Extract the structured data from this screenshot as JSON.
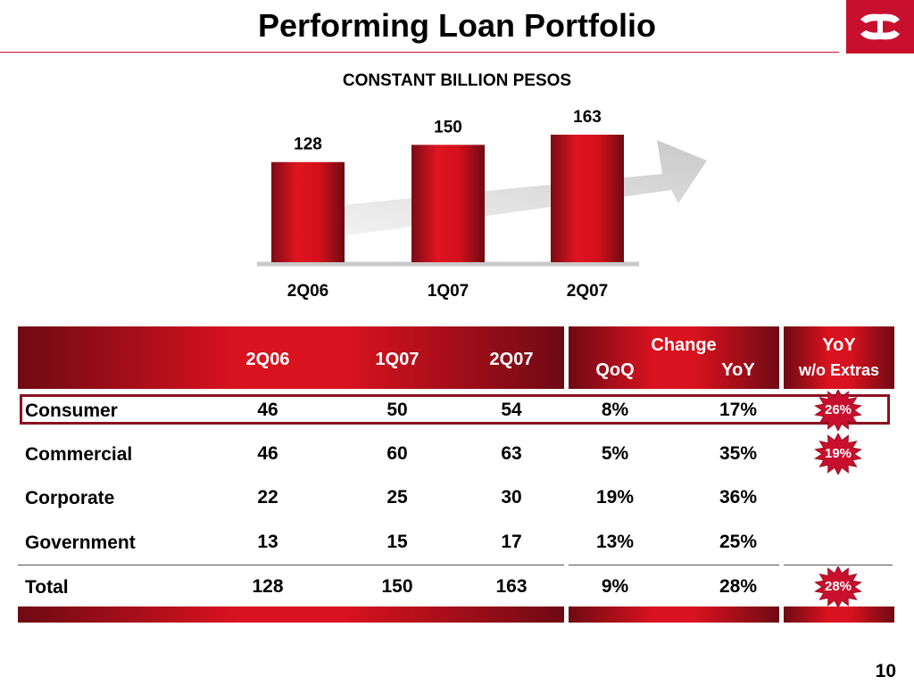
{
  "title": "Performing Loan Portfolio",
  "subtitle": "CONSTANT BILLION PESOS",
  "page_number": "10",
  "colors": {
    "brand_red": "#c8102e",
    "dark_red": "#6f0a14",
    "arrow_gray": "#d9d9d9"
  },
  "chart_data": {
    "type": "bar",
    "categories": [
      "2Q06",
      "1Q07",
      "2Q07"
    ],
    "values": [
      128,
      150,
      163
    ],
    "data_labels": [
      "128",
      "150",
      "163"
    ],
    "title": "",
    "xlabel": "",
    "ylabel": "",
    "ylim": [
      0,
      163
    ],
    "grid": false
  },
  "table": {
    "header": {
      "periods": [
        "2Q06",
        "1Q07",
        "2Q07"
      ],
      "change_label": "Change",
      "qoq_label": "QoQ",
      "yoy_label": "YoY",
      "yoy_extras_label_1": "YoY",
      "yoy_extras_label_2": "w/o Extras"
    },
    "rows": [
      {
        "label": "Consumer",
        "v2q06": "46",
        "v1q07": "50",
        "v2q07": "54",
        "qoq": "8%",
        "yoy": "17%",
        "badge": "26%"
      },
      {
        "label": "Commercial",
        "v2q06": "46",
        "v1q07": "60",
        "v2q07": "63",
        "qoq": "5%",
        "yoy": "35%",
        "badge": "19%"
      },
      {
        "label": "Corporate",
        "v2q06": "22",
        "v1q07": "25",
        "v2q07": "30",
        "qoq": "19%",
        "yoy": "36%",
        "badge": ""
      },
      {
        "label": "Government",
        "v2q06": "13",
        "v1q07": "15",
        "v2q07": "17",
        "qoq": "13%",
        "yoy": "25%",
        "badge": ""
      },
      {
        "label": "Total",
        "v2q06": "128",
        "v1q07": "150",
        "v2q07": "163",
        "qoq": "9%",
        "yoy": "28%",
        "badge": "28%"
      }
    ]
  }
}
